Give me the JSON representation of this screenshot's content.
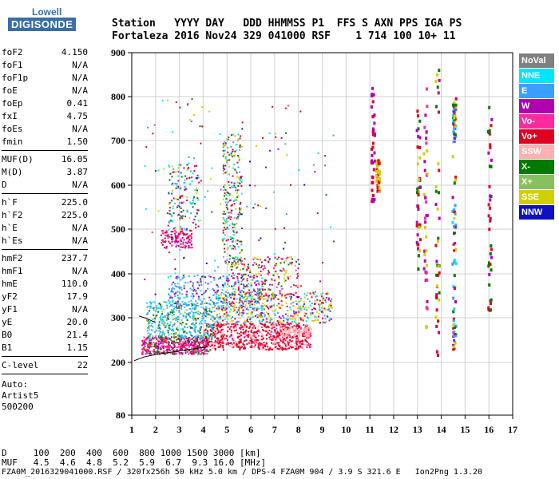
{
  "logo": {
    "line1": "Lowell",
    "line2": "DIGISONDE"
  },
  "header": {
    "labels": "Station   YYYY DAY   DDD HHMMSS P1  FFS S AXN PPS IGA PS",
    "values": "Fortaleza 2016 Nov24 329 041000 RSF    1 714 100 10+ 11"
  },
  "params": {
    "group1": [
      {
        "name": "foF2",
        "value": "4.150"
      },
      {
        "name": "foF1",
        "value": "N/A"
      },
      {
        "name": "foF1p",
        "value": "N/A"
      },
      {
        "name": "foE",
        "value": "N/A"
      },
      {
        "name": "foEp",
        "value": "0.41"
      },
      {
        "name": "fxI",
        "value": "4.75"
      },
      {
        "name": "foEs",
        "value": "N/A"
      },
      {
        "name": "fmin",
        "value": "1.50"
      }
    ],
    "group2": [
      {
        "name": "MUF(D)",
        "value": "16.05"
      },
      {
        "name": "M(D)",
        "value": "3.87"
      },
      {
        "name": "D",
        "value": "N/A"
      }
    ],
    "group3": [
      {
        "name": "h`F",
        "value": "225.0"
      },
      {
        "name": "h`F2",
        "value": "225.0"
      },
      {
        "name": "h`E",
        "value": "N/A"
      },
      {
        "name": "h`Es",
        "value": "N/A"
      }
    ],
    "group4": [
      {
        "name": "hmF2",
        "value": "237.7"
      },
      {
        "name": "hmF1",
        "value": "N/A"
      },
      {
        "name": "hmE",
        "value": "110.0"
      },
      {
        "name": "yF2",
        "value": "17.9"
      },
      {
        "name": "yF1",
        "value": "N/A"
      },
      {
        "name": "yE",
        "value": "20.0"
      },
      {
        "name": "B0",
        "value": "21.4"
      },
      {
        "name": "B1",
        "value": "1.15"
      }
    ],
    "group5": [
      {
        "name": "C-level",
        "value": "22"
      }
    ],
    "auto": [
      "Auto:",
      "Artist5",
      "500200"
    ]
  },
  "legend": [
    {
      "label": "NoVal",
      "color": "#808080"
    },
    {
      "label": "NNE",
      "color": "#00e5ff"
    },
    {
      "label": "E",
      "color": "#3aa0ff"
    },
    {
      "label": "W",
      "color": "#b000b0"
    },
    {
      "label": "Vo-",
      "color": "#ff2aa0"
    },
    {
      "label": "Vo+",
      "color": "#e00020"
    },
    {
      "label": "SSW",
      "color": "#ffb0b0"
    },
    {
      "label": "X-",
      "color": "#007a00"
    },
    {
      "label": "X+",
      "color": "#88c060"
    },
    {
      "label": "SSE",
      "color": "#d0d000"
    },
    {
      "label": "NNW",
      "color": "#1010c0"
    }
  ],
  "chart_data": {
    "type": "scatter",
    "xlim": [
      1,
      17
    ],
    "ylim": [
      80,
      900
    ],
    "x_ticks": [
      "1",
      "2",
      "3",
      "4",
      "5",
      "6",
      "7",
      "8",
      "9",
      "10",
      "11",
      "12",
      "13",
      "14",
      "15",
      "16",
      "17"
    ],
    "y_ticks": [
      "80",
      "200",
      "300",
      "400",
      "500",
      "600",
      "700",
      "800",
      "900"
    ],
    "trace": {
      "x": [
        1.1,
        1.5,
        2.0,
        2.5,
        3.0,
        3.5,
        4.0,
        4.2
      ],
      "y": [
        204,
        212,
        218,
        222,
        226,
        230,
        234,
        235
      ]
    },
    "trace2": {
      "x": [
        1.3,
        1.6,
        2.0
      ],
      "y": [
        305,
        300,
        290
      ]
    }
  },
  "bottom": {
    "d_line": "D     100  200  400  600  800 1000 1500 3000 [km]",
    "muf_line": "MUF   4.5  4.6  4.8  5.2  5.9  6.7  9.3 16.0 [MHz]"
  },
  "footer": "FZA0M_2016329041000.RSF / 320fx256h 50 kHz 5.0 km / DPS-4 FZA0M 904 / 3.9 S 321.6 E   Ion2Png 1.3.20"
}
